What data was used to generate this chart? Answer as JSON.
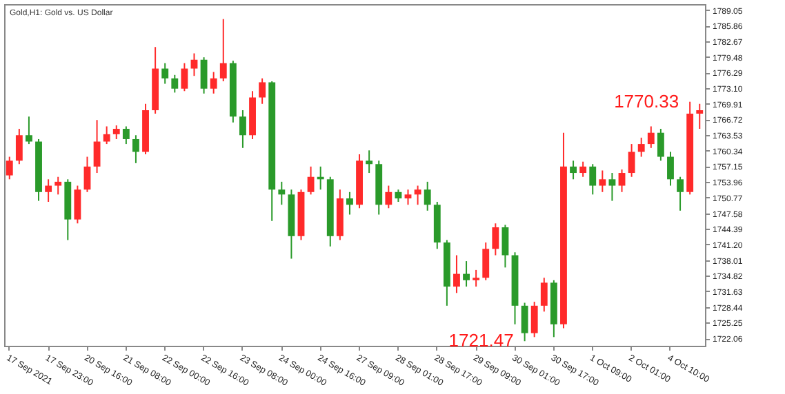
{
  "chart_data": {
    "type": "candlestick",
    "title": "Gold,H1: Gold vs. US Dollar",
    "categories": [
      "17 Sep 2021",
      null,
      null,
      null,
      "17 Sep 23:00",
      null,
      null,
      null,
      "20 Sep 16:00",
      null,
      null,
      null,
      "21 Sep 08:00",
      null,
      null,
      null,
      "22 Sep 00:00",
      null,
      null,
      null,
      "22 Sep 16:00",
      null,
      null,
      null,
      "23 Sep 08:00",
      null,
      null,
      null,
      "24 Sep 00:00",
      null,
      null,
      null,
      "24 Sep 16:00",
      null,
      null,
      null,
      "27 Sep 09:00",
      null,
      null,
      null,
      "28 Sep 01:00",
      null,
      null,
      null,
      "28 Sep 17:00",
      null,
      null,
      null,
      "29 Sep 09:00",
      null,
      null,
      null,
      "30 Sep 01:00",
      null,
      null,
      null,
      "30 Sep 17:00",
      null,
      null,
      null,
      "1 Oct 09:00",
      null,
      null,
      null,
      "2 Oct 01:00",
      null,
      null,
      null,
      "4 Oct 10:00",
      null,
      null,
      null
    ],
    "ohlc": [
      [
        1755.3,
        1759.1,
        1754.5,
        1758.3
      ],
      [
        1758.3,
        1764.8,
        1757.6,
        1763.5
      ],
      [
        1763.5,
        1767.3,
        1761.7,
        1762.2
      ],
      [
        1762.2,
        1762.7,
        1750.1,
        1751.9
      ],
      [
        1751.9,
        1754.5,
        1749.9,
        1753.2
      ],
      [
        1753.2,
        1755.0,
        1751.4,
        1754.0
      ],
      [
        1754.0,
        1754.5,
        1742.1,
        1746.3
      ],
      [
        1746.3,
        1753.2,
        1745.5,
        1752.4
      ],
      [
        1752.4,
        1759.1,
        1751.9,
        1757.1
      ],
      [
        1757.1,
        1766.6,
        1755.8,
        1762.2
      ],
      [
        1762.2,
        1765.3,
        1761.7,
        1763.7
      ],
      [
        1763.7,
        1765.5,
        1762.7,
        1764.8
      ],
      [
        1764.8,
        1765.3,
        1761.7,
        1762.7
      ],
      [
        1762.7,
        1763.5,
        1757.8,
        1760.1
      ],
      [
        1760.1,
        1769.9,
        1759.6,
        1768.6
      ],
      [
        1768.6,
        1781.5,
        1767.9,
        1777.1
      ],
      [
        1777.1,
        1778.2,
        1774.0,
        1775.1
      ],
      [
        1775.1,
        1775.8,
        1772.2,
        1773.0
      ],
      [
        1773.0,
        1778.2,
        1772.5,
        1777.1
      ],
      [
        1777.1,
        1780.2,
        1775.6,
        1778.9
      ],
      [
        1778.9,
        1779.4,
        1772.0,
        1773.0
      ],
      [
        1773.0,
        1776.4,
        1772.0,
        1775.1
      ],
      [
        1775.1,
        1787.2,
        1774.5,
        1778.2
      ],
      [
        1778.2,
        1778.7,
        1766.1,
        1767.3
      ],
      [
        1767.3,
        1768.6,
        1760.9,
        1763.5
      ],
      [
        1763.5,
        1772.5,
        1762.7,
        1771.2
      ],
      [
        1771.2,
        1775.1,
        1769.9,
        1774.3
      ],
      [
        1774.3,
        1774.5,
        1746.0,
        1752.4
      ],
      [
        1752.4,
        1754.0,
        1749.3,
        1751.4
      ],
      [
        1751.4,
        1752.4,
        1738.3,
        1742.9
      ],
      [
        1742.9,
        1752.4,
        1742.1,
        1751.9
      ],
      [
        1751.9,
        1757.1,
        1751.4,
        1755.0
      ],
      [
        1755.0,
        1757.1,
        1752.4,
        1754.5
      ],
      [
        1754.5,
        1755.0,
        1740.8,
        1742.9
      ],
      [
        1742.9,
        1752.4,
        1742.1,
        1750.6
      ],
      [
        1750.6,
        1751.9,
        1747.3,
        1749.3
      ],
      [
        1749.3,
        1759.6,
        1748.6,
        1758.3
      ],
      [
        1758.3,
        1760.4,
        1755.8,
        1757.6
      ],
      [
        1757.6,
        1758.3,
        1747.3,
        1749.3
      ],
      [
        1749.3,
        1753.2,
        1748.6,
        1751.9
      ],
      [
        1751.9,
        1752.4,
        1749.9,
        1750.6
      ],
      [
        1750.6,
        1752.4,
        1749.3,
        1751.4
      ],
      [
        1751.4,
        1753.2,
        1749.3,
        1752.4
      ],
      [
        1752.4,
        1754.0,
        1748.1,
        1749.3
      ],
      [
        1749.3,
        1749.9,
        1740.3,
        1741.6
      ],
      [
        1741.6,
        1742.1,
        1728.7,
        1732.6
      ],
      [
        1732.6,
        1739.0,
        1731.3,
        1735.2
      ],
      [
        1735.2,
        1737.8,
        1732.6,
        1733.9
      ],
      [
        1733.9,
        1736.0,
        1732.6,
        1734.4
      ],
      [
        1734.4,
        1741.6,
        1733.9,
        1740.3
      ],
      [
        1740.3,
        1745.5,
        1739.0,
        1744.7
      ],
      [
        1744.7,
        1745.2,
        1736.5,
        1739.0
      ],
      [
        1739.0,
        1739.6,
        1724.9,
        1728.7
      ],
      [
        1728.7,
        1729.3,
        1721.47,
        1723.1
      ],
      [
        1723.1,
        1729.5,
        1722.3,
        1728.7
      ],
      [
        1728.7,
        1734.4,
        1727.5,
        1733.4
      ],
      [
        1733.4,
        1733.9,
        1722.3,
        1724.9
      ],
      [
        1724.9,
        1764.0,
        1724.1,
        1757.1
      ],
      [
        1757.1,
        1758.3,
        1754.5,
        1755.8
      ],
      [
        1755.8,
        1758.1,
        1755.0,
        1757.1
      ],
      [
        1757.1,
        1757.6,
        1751.4,
        1753.2
      ],
      [
        1753.2,
        1756.3,
        1751.9,
        1754.5
      ],
      [
        1754.5,
        1755.8,
        1750.1,
        1753.2
      ],
      [
        1753.2,
        1756.5,
        1751.9,
        1755.8
      ],
      [
        1755.8,
        1761.7,
        1755.0,
        1760.1
      ],
      [
        1760.1,
        1763.0,
        1759.1,
        1761.7
      ],
      [
        1761.7,
        1765.3,
        1760.9,
        1764.0
      ],
      [
        1764.0,
        1764.8,
        1758.3,
        1759.1
      ],
      [
        1759.1,
        1760.1,
        1753.2,
        1754.5
      ],
      [
        1754.5,
        1755.0,
        1748.1,
        1751.9
      ],
      [
        1751.9,
        1770.33,
        1751.4,
        1767.9
      ],
      [
        1767.9,
        1769.9,
        1764.8,
        1768.6
      ]
    ],
    "colors": [
      "#ff2a2a",
      "#ff2a2a",
      "#2a9a2a",
      "#2a9a2a",
      "#ff2a2a",
      "#ff2a2a",
      "#2a9a2a",
      "#ff2a2a",
      "#ff2a2a",
      "#ff2a2a",
      "#ff2a2a",
      "#ff2a2a",
      "#2a9a2a",
      "#2a9a2a",
      "#ff2a2a",
      "#ff2a2a",
      "#2a9a2a",
      "#2a9a2a",
      "#ff2a2a",
      "#ff2a2a",
      "#2a9a2a",
      "#ff2a2a",
      "#ff2a2a",
      "#2a9a2a",
      "#2a9a2a",
      "#ff2a2a",
      "#ff2a2a",
      "#2a9a2a",
      "#2a9a2a",
      "#2a9a2a",
      "#ff2a2a",
      "#ff2a2a",
      "#2a9a2a",
      "#2a9a2a",
      "#ff2a2a",
      "#2a9a2a",
      "#ff2a2a",
      "#2a9a2a",
      "#2a9a2a",
      "#ff2a2a",
      "#2a9a2a",
      "#ff2a2a",
      "#ff2a2a",
      "#2a9a2a",
      "#2a9a2a",
      "#2a9a2a",
      "#ff2a2a",
      "#2a9a2a",
      "#ff2a2a",
      "#ff2a2a",
      "#ff2a2a",
      "#2a9a2a",
      "#2a9a2a",
      "#2a9a2a",
      "#ff2a2a",
      "#ff2a2a",
      "#2a9a2a",
      "#ff2a2a",
      "#2a9a2a",
      "#ff2a2a",
      "#2a9a2a",
      "#ff2a2a",
      "#2a9a2a",
      "#ff2a2a",
      "#ff2a2a",
      "#ff2a2a",
      "#ff2a2a",
      "#2a9a2a",
      "#2a9a2a",
      "#2a9a2a",
      "#ff2a2a",
      "#ff2a2a"
    ],
    "ylim": [
      1720.52,
      1790.25
    ],
    "yticks": [
      1722.06,
      1725.25,
      1728.44,
      1731.63,
      1734.82,
      {
        "value": 1738.01,
        "label": "1738.01"
      },
      {
        "value": 1741.2,
        "label": "1741.20"
      },
      1744.39,
      1747.58,
      1750.77,
      1753.96,
      1757.15,
      1760.34,
      1763.53,
      1766.72,
      1769.91,
      {
        "value": 1773.1,
        "label": "1773.10"
      },
      1776.29,
      1779.48,
      1782.67,
      1785.86,
      1789.05
    ],
    "annotations": [
      "1770.33",
      "1721.47"
    ]
  }
}
